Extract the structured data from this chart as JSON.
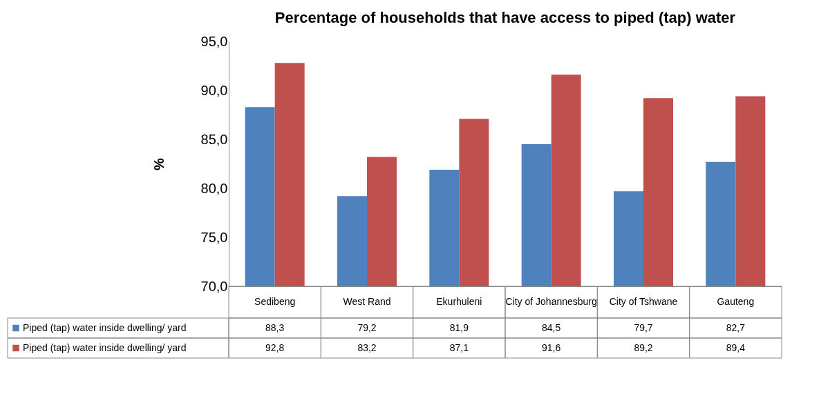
{
  "chart_data": {
    "type": "bar",
    "title": "Percentage of households that have access to piped (tap) water",
    "ylabel": "%",
    "categories": [
      "Sedibeng",
      "West Rand",
      "Ekurhuleni",
      "City of Johannesburg",
      "City of Tshwane",
      "Gauteng"
    ],
    "series": [
      {
        "name": "Piped (tap) water inside dwelling/ yard",
        "color": "#4f81bd",
        "values": [
          88.3,
          79.2,
          81.9,
          84.5,
          79.7,
          82.7
        ],
        "value_labels": [
          "88,3",
          "79,2",
          "81,9",
          "84,5",
          "79,7",
          "82,7"
        ]
      },
      {
        "name": "Piped (tap) water inside dwelling/ yard",
        "color": "#c0504d",
        "values": [
          92.8,
          83.2,
          87.1,
          91.6,
          89.2,
          89.4
        ],
        "value_labels": [
          "92,8",
          "83,2",
          "87,1",
          "91,6",
          "89,2",
          "89,4"
        ]
      }
    ],
    "ylim": [
      70,
      95
    ],
    "yticks": [
      {
        "value": 70,
        "label": "70,0"
      },
      {
        "value": 75,
        "label": "75,0"
      },
      {
        "value": 80,
        "label": "80,0"
      },
      {
        "value": 85,
        "label": "85,0"
      },
      {
        "value": 90,
        "label": "90,0"
      },
      {
        "value": 95,
        "label": "95,0"
      }
    ],
    "grid": false,
    "legend": "bottom"
  }
}
